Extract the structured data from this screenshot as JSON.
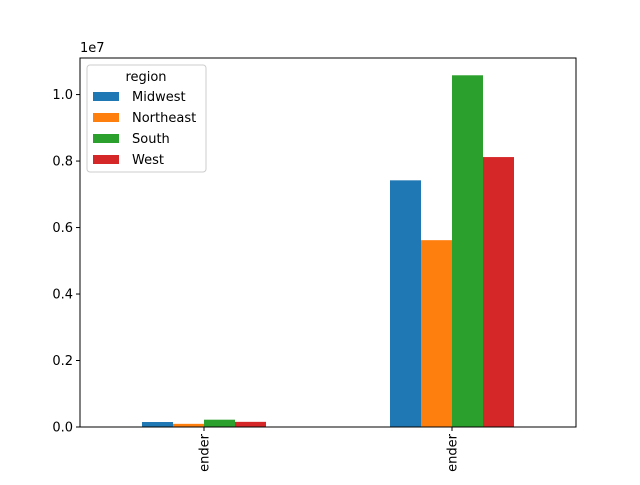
{
  "chart_data": {
    "type": "bar",
    "title": "",
    "xlabel": "",
    "ylabel": "",
    "categories": [
      "ender",
      "ender"
    ],
    "series": [
      {
        "name": "Midwest",
        "color": "#1f77b4",
        "values": [
          150000,
          7420000
        ]
      },
      {
        "name": "Northeast",
        "color": "#ff7f0e",
        "values": [
          95000,
          5620000
        ]
      },
      {
        "name": "South",
        "color": "#2ca02c",
        "values": [
          220000,
          10580000
        ]
      },
      {
        "name": "West",
        "color": "#d62728",
        "values": [
          155000,
          8120000
        ]
      }
    ],
    "ylim": [
      0,
      11100000
    ],
    "yticks": [
      0,
      2000000,
      4000000,
      6000000,
      8000000,
      10000000
    ],
    "ytick_labels": [
      "0.0",
      "0.2",
      "0.4",
      "0.6",
      "0.8",
      "1.0"
    ],
    "y_offset_label": "1e7",
    "xtick_rotation": 90,
    "legend": {
      "title": "region",
      "placement": "upper-left"
    },
    "grid": false
  }
}
